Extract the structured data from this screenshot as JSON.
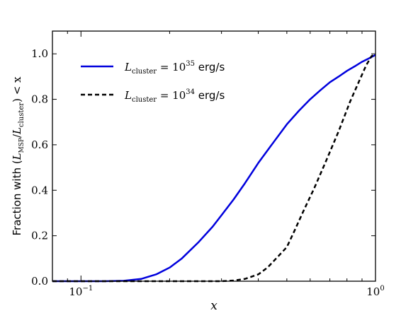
{
  "chart_data": {
    "type": "line",
    "xscale": "log",
    "xlim": [
      0.08,
      1.0
    ],
    "ylim": [
      0.0,
      1.1
    ],
    "xlabel": "x",
    "ylabel": {
      "prefix": "Fraction with (",
      "L": "L",
      "msp_sub": "MSP",
      "slash": "/",
      "cluster_sub": "cluster",
      "suffix": ") < x"
    },
    "x_major_ticks": [
      {
        "value": 0.1,
        "base": "10",
        "exp": "−1"
      },
      {
        "value": 1.0,
        "base": "10",
        "exp": "0"
      }
    ],
    "y_ticks": [
      {
        "value": 0.0,
        "label": "0.0"
      },
      {
        "value": 0.2,
        "label": "0.2"
      },
      {
        "value": 0.4,
        "label": "0.4"
      },
      {
        "value": 0.6,
        "label": "0.6"
      },
      {
        "value": 0.8,
        "label": "0.8"
      },
      {
        "value": 1.0,
        "label": "1.0"
      }
    ],
    "legend_position": "top-left",
    "series": [
      {
        "label_L": "L",
        "label_sub": "cluster",
        "label_eq": " = 10",
        "label_exp": "35",
        "label_unit": " erg/s",
        "color": "#0000dd",
        "style": "solid",
        "x": [
          0.08,
          0.1,
          0.12,
          0.14,
          0.16,
          0.18,
          0.2,
          0.22,
          0.25,
          0.28,
          0.3,
          0.33,
          0.36,
          0.4,
          0.45,
          0.5,
          0.55,
          0.6,
          0.65,
          0.7,
          0.75,
          0.8,
          0.85,
          0.9,
          0.95,
          1.0
        ],
        "y": [
          0.0,
          0.0,
          0.0,
          0.002,
          0.01,
          0.03,
          0.06,
          0.1,
          0.17,
          0.24,
          0.29,
          0.36,
          0.43,
          0.52,
          0.61,
          0.69,
          0.75,
          0.8,
          0.84,
          0.875,
          0.9,
          0.925,
          0.945,
          0.965,
          0.98,
          0.995
        ]
      },
      {
        "label_L": "L",
        "label_sub": "cluster",
        "label_eq": " = 10",
        "label_exp": "34",
        "label_unit": " erg/s",
        "color": "#000000",
        "style": "dashed",
        "x": [
          0.08,
          0.2,
          0.3,
          0.33,
          0.36,
          0.4,
          0.43,
          0.46,
          0.5,
          0.53,
          0.57,
          0.62,
          0.68,
          0.75,
          0.82,
          0.88,
          0.93,
          0.97,
          1.0
        ],
        "y": [
          0.0,
          0.0,
          0.0,
          0.003,
          0.01,
          0.03,
          0.06,
          0.1,
          0.15,
          0.22,
          0.31,
          0.41,
          0.53,
          0.66,
          0.79,
          0.88,
          0.95,
          0.99,
          1.0
        ]
      }
    ]
  }
}
